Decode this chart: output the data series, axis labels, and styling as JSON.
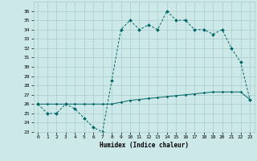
{
  "xlabel": "Humidex (Indice chaleur)",
  "background_color": "#cce8e8",
  "grid_color": "#aacccc",
  "line_color": "#006666",
  "xlim": [
    -0.5,
    23.5
  ],
  "ylim": [
    23,
    37
  ],
  "yticks": [
    23,
    24,
    25,
    26,
    27,
    28,
    29,
    30,
    31,
    32,
    33,
    34,
    35,
    36
  ],
  "xticks": [
    0,
    1,
    2,
    3,
    4,
    5,
    6,
    7,
    8,
    9,
    10,
    11,
    12,
    13,
    14,
    15,
    16,
    17,
    18,
    19,
    20,
    21,
    22,
    23
  ],
  "series1_x": [
    0,
    1,
    2,
    3,
    4,
    5,
    6,
    7,
    8,
    9,
    10,
    11,
    12,
    13,
    14,
    15,
    16,
    17,
    18,
    19,
    20,
    21,
    22,
    23
  ],
  "series1_y": [
    26,
    25,
    25,
    26,
    25.5,
    24.5,
    23.5,
    23,
    28.5,
    34,
    35,
    34,
    34.5,
    34,
    36,
    35,
    35,
    34,
    34,
    33.5,
    34,
    32,
    30.5,
    26.5
  ],
  "series2_x": [
    0,
    1,
    2,
    3,
    4,
    5,
    6,
    7,
    8,
    9,
    10,
    11,
    12,
    13,
    14,
    15,
    16,
    17,
    18,
    19,
    20,
    21,
    22,
    23
  ],
  "series2_y": [
    26,
    26,
    26,
    26,
    26,
    26,
    26,
    26,
    26,
    26.2,
    26.4,
    26.5,
    26.6,
    26.7,
    26.8,
    26.9,
    27.0,
    27.1,
    27.2,
    27.3,
    27.3,
    27.3,
    27.3,
    26.5
  ]
}
